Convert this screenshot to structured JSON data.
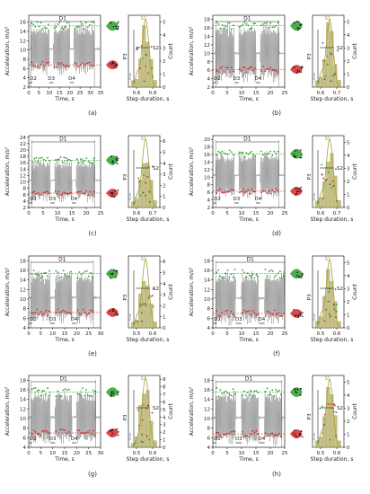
{
  "figure": {
    "panels": [
      {
        "label": "(a)",
        "time_max": 35,
        "time_ticks": [
          0,
          5,
          10,
          15,
          20,
          25,
          30,
          35
        ],
        "acc_ticks": [
          2,
          4,
          6,
          8,
          10,
          12,
          14,
          16
        ],
        "acc_range": [
          2,
          17.5
        ],
        "step_ticks": [
          "0.6",
          "0.8"
        ],
        "count_ticks": [
          0,
          1,
          2,
          3,
          4,
          5
        ],
        "count_max": 5.5
      },
      {
        "label": "(b)",
        "time_max": 25,
        "time_ticks": [
          0,
          5,
          10,
          15,
          20,
          25
        ],
        "acc_ticks": [
          2,
          4,
          6,
          8,
          10,
          12,
          14,
          16,
          18
        ],
        "acc_range": [
          2,
          19
        ],
        "step_ticks": [
          "0.6",
          "0.7"
        ],
        "count_ticks": [
          0,
          1,
          2,
          3,
          4,
          5
        ],
        "count_max": 5.5
      },
      {
        "label": "(c)",
        "time_max": 25,
        "time_ticks": [
          0,
          5,
          10,
          15,
          20,
          25
        ],
        "acc_ticks": [
          2,
          4,
          6,
          8,
          10,
          12,
          14,
          16,
          18,
          20,
          22,
          24
        ],
        "acc_range": [
          2,
          24.5
        ],
        "step_ticks": [
          "0.6",
          "0.7"
        ],
        "count_ticks": [
          0,
          1,
          2,
          3,
          4,
          5,
          6
        ],
        "count_max": 6.5
      },
      {
        "label": "(d)",
        "time_max": 25,
        "time_ticks": [
          0,
          5,
          10,
          15,
          20,
          25
        ],
        "acc_ticks": [
          2,
          4,
          6,
          8,
          10,
          12,
          14,
          16,
          18,
          20
        ],
        "acc_range": [
          2,
          21
        ],
        "step_ticks": [
          "0.6",
          "0.7"
        ],
        "count_ticks": [
          0,
          1,
          2,
          3,
          4,
          5
        ],
        "count_max": 5.5
      },
      {
        "label": "(e)",
        "time_max": 30,
        "time_ticks": [
          0,
          5,
          10,
          15,
          20,
          25,
          30
        ],
        "acc_ticks": [
          4,
          6,
          8,
          10,
          12,
          14,
          16,
          18
        ],
        "acc_range": [
          4,
          19
        ],
        "step_ticks": [
          "0.5",
          "0.6"
        ],
        "count_ticks": [
          0,
          1,
          2,
          3,
          4,
          5,
          6
        ],
        "count_max": 6.5
      },
      {
        "label": "(f)",
        "time_max": 25,
        "time_ticks": [
          0,
          5,
          10,
          15,
          20,
          25
        ],
        "acc_ticks": [
          4,
          6,
          8,
          10,
          12,
          14,
          16,
          18
        ],
        "acc_range": [
          4,
          19
        ],
        "step_ticks": [
          "0.5",
          "0.6"
        ],
        "count_ticks": [
          0,
          1,
          2,
          3,
          4,
          5
        ],
        "count_max": 5.5
      },
      {
        "label": "(g)",
        "time_max": 30,
        "time_ticks": [
          0,
          5,
          10,
          15,
          20,
          25,
          30
        ],
        "acc_ticks": [
          4,
          6,
          8,
          10,
          12,
          14,
          16,
          18
        ],
        "acc_range": [
          4,
          19
        ],
        "step_ticks": [
          "0.5",
          "0.6"
        ],
        "count_ticks": [
          0,
          1,
          2,
          3,
          4,
          5,
          6,
          7,
          8,
          9
        ],
        "count_max": 9.5
      },
      {
        "label": "(h)",
        "time_max": 25,
        "time_ticks": [
          0,
          5,
          10,
          15,
          20,
          25
        ],
        "acc_ticks": [
          4,
          6,
          8,
          10,
          12,
          14,
          16,
          18
        ],
        "acc_range": [
          4,
          19
        ],
        "step_ticks": [
          "0.5",
          "0.6"
        ],
        "count_ticks": [
          0,
          1,
          2,
          3,
          4,
          5
        ],
        "count_max": 5.5
      }
    ],
    "labels": {
      "ylabel_left": "Acceleration, m/s²",
      "xlabel_left": "Time, s",
      "xlabel_right": "Step duration, s",
      "ylabel_right": "Count",
      "d1": "D1",
      "d2": "D2",
      "d3": "D3",
      "d4": "D4",
      "s1": "S1",
      "s2": "S2",
      "p3": "P3",
      "time_box": "time"
    },
    "colors": {
      "signal": "#7a7a7a",
      "peaks_high": "#2ca02c",
      "peaks_low": "#d62728",
      "hist": "#b8b26a",
      "kde": "#a6a03a",
      "axis": "#222222"
    }
  },
  "chart_data": [
    {
      "type": "line",
      "title": "",
      "panel": "(a)",
      "xlabel": "Time, s",
      "ylabel": "Acceleration, m/s²",
      "xlim": [
        0,
        35
      ],
      "ylim": [
        2,
        17.5
      ],
      "baseline": 10.2,
      "peak_high": 15.2,
      "peak_low": 6.8,
      "segments": [
        [
          1,
          10
        ],
        [
          12,
          20
        ],
        [
          22,
          32
        ]
      ]
    },
    {
      "type": "line",
      "title": "",
      "panel": "(b)",
      "xlabel": "Time, s",
      "ylabel": "Acceleration, m/s²",
      "xlim": [
        0,
        25
      ],
      "ylim": [
        2,
        19
      ],
      "baseline": 10,
      "peak_high": 16.5,
      "peak_low": 6.2,
      "segments": [
        [
          1,
          7.5
        ],
        [
          9,
          15
        ],
        [
          16.5,
          23
        ]
      ]
    },
    {
      "type": "line",
      "title": "",
      "panel": "(c)",
      "xlabel": "Time, s",
      "ylabel": "Acceleration, m/s²",
      "xlim": [
        0,
        25
      ],
      "ylim": [
        2,
        24.5
      ],
      "baseline": 10.5,
      "peak_high": 16.8,
      "peak_low": 6.5,
      "segments": [
        [
          1,
          7.5
        ],
        [
          9,
          15
        ],
        [
          16.5,
          23
        ]
      ]
    },
    {
      "type": "line",
      "title": "",
      "panel": "(d)",
      "xlabel": "Time, s",
      "ylabel": "Acceleration, m/s²",
      "xlim": [
        0,
        25
      ],
      "ylim": [
        2,
        21
      ],
      "baseline": 10.5,
      "peak_high": 16.2,
      "peak_low": 6.3,
      "segments": [
        [
          1,
          7.5
        ],
        [
          9,
          15
        ],
        [
          16.5,
          23
        ]
      ]
    },
    {
      "type": "line",
      "title": "",
      "panel": "(e)",
      "xlabel": "Time, s",
      "ylabel": "Acceleration, m/s²",
      "xlim": [
        0,
        30
      ],
      "ylim": [
        4,
        19
      ],
      "baseline": 10.3,
      "peak_high": 15.3,
      "peak_low": 7.2,
      "segments": [
        [
          1,
          9
        ],
        [
          11,
          18
        ],
        [
          20,
          27
        ]
      ]
    },
    {
      "type": "line",
      "title": "",
      "panel": "(f)",
      "xlabel": "Time, s",
      "ylabel": "Acceleration, m/s²",
      "xlim": [
        0,
        25
      ],
      "ylim": [
        4,
        19
      ],
      "baseline": 10.2,
      "peak_high": 15.3,
      "peak_low": 7.0,
      "segments": [
        [
          1,
          8
        ],
        [
          10,
          16
        ],
        [
          18,
          25
        ]
      ]
    },
    {
      "type": "line",
      "title": "",
      "panel": "(g)",
      "xlabel": "Time, s",
      "ylabel": "Acceleration, m/s²",
      "xlim": [
        0,
        30
      ],
      "ylim": [
        4,
        19
      ],
      "baseline": 10.3,
      "peak_high": 15.5,
      "peak_low": 7.0,
      "segments": [
        [
          1,
          9
        ],
        [
          11,
          18
        ],
        [
          20,
          28
        ]
      ]
    },
    {
      "type": "line",
      "title": "",
      "panel": "(h)",
      "xlabel": "Time, s",
      "ylabel": "Acceleration, m/s²",
      "xlim": [
        0,
        25
      ],
      "ylim": [
        4,
        19
      ],
      "baseline": 10.2,
      "peak_high": 15.5,
      "peak_low": 6.8,
      "segments": [
        [
          1,
          8
        ],
        [
          10,
          16
        ],
        [
          18,
          24
        ]
      ]
    }
  ]
}
